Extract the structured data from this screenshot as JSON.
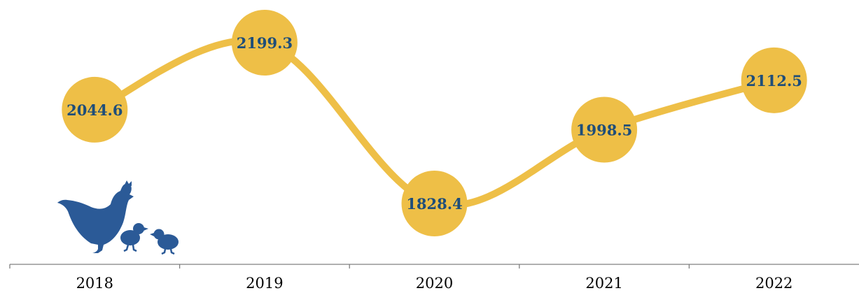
{
  "chart_data": {
    "type": "line",
    "categories": [
      "2018",
      "2019",
      "2020",
      "2021",
      "2022"
    ],
    "values": [
      2044.6,
      2199.3,
      1828.4,
      1998.5,
      2112.5
    ],
    "value_labels": [
      "2044.6",
      "2199.3",
      "1828.4",
      "1998.5",
      "2112.5"
    ],
    "title": "",
    "xlabel": "",
    "ylabel": "",
    "grid": false,
    "legend": "none",
    "colors": {
      "line": "#eebf47",
      "marker": "#eebf47",
      "label": "#1f4e79",
      "axis": "#7f7f7f",
      "tick_text": "#000000",
      "icon": "#2b5a97"
    },
    "decoration_icon": "hen-with-chicks-icon"
  }
}
